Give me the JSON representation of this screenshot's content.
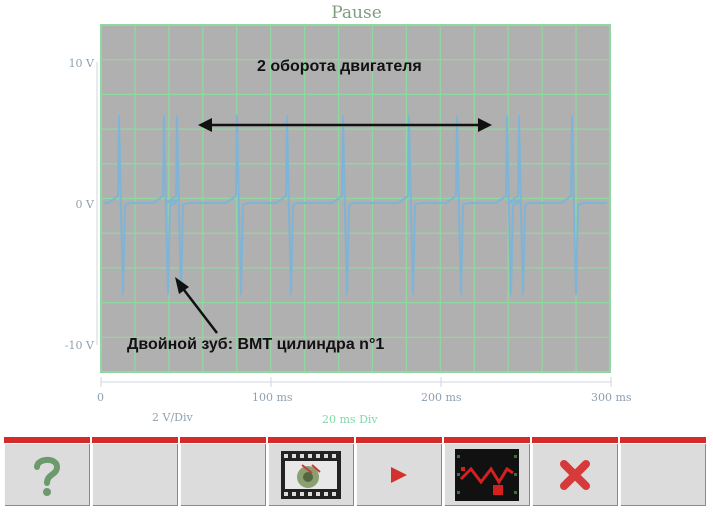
{
  "window": {
    "title": "Pause"
  },
  "scope": {
    "y_axis": {
      "labels": [
        "10 V",
        "0 V",
        "-10 V"
      ],
      "unit_per_div": "2 V/Div"
    },
    "x_axis": {
      "labels": [
        "0",
        "100 ms",
        "200 ms",
        "300 ms"
      ],
      "unit_per_div": "20 ms Div"
    },
    "grid_divisions": {
      "x": 15,
      "y": 10
    },
    "colors": {
      "background": "#b0b0b0",
      "grid": "#8fd9a0",
      "trace": "#7fb4d6",
      "toolbar_accent": "#d42a2a"
    }
  },
  "annotations": {
    "top": "2 оборота двигателя",
    "bottom": "Двойной зуб: ВМТ цилиндра n°1"
  },
  "toolbar": {
    "buttons": [
      {
        "name": "help",
        "icon": "question-mark-icon"
      },
      {
        "name": "empty-1",
        "icon": ""
      },
      {
        "name": "empty-2",
        "icon": ""
      },
      {
        "name": "record",
        "icon": "film-strip-icon"
      },
      {
        "name": "play",
        "icon": "play-arrow-icon"
      },
      {
        "name": "trace-view",
        "icon": "waveform-screen-icon"
      },
      {
        "name": "close",
        "icon": "close-x-icon"
      },
      {
        "name": "empty-3",
        "icon": ""
      }
    ]
  }
}
